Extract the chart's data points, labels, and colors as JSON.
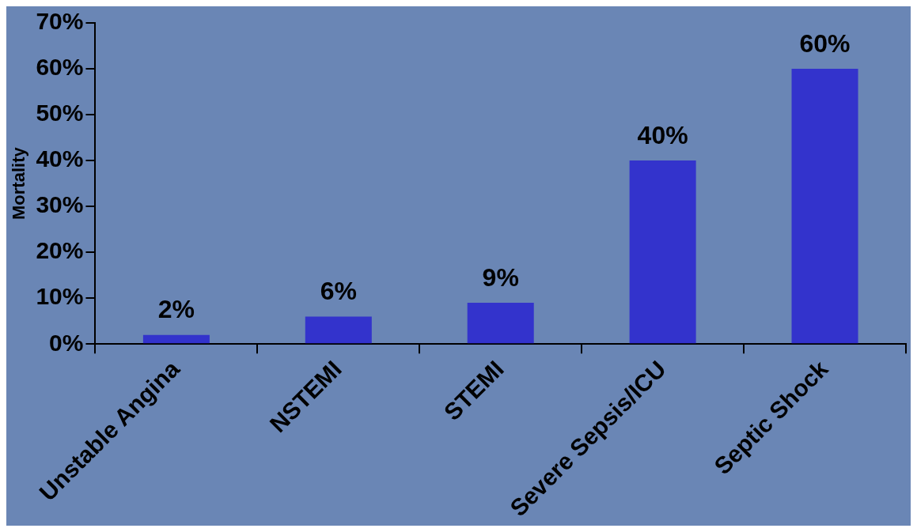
{
  "chart_data": {
    "type": "bar",
    "ylabel": "Mortality",
    "categories": [
      "Unstable Angina",
      "NSTEMI",
      "STEMI",
      "Severe Sepsis/ICU",
      "Septic Shock"
    ],
    "values": [
      2,
      6,
      9,
      40,
      60
    ],
    "value_labels": [
      "2%",
      "6%",
      "9%",
      "40%",
      "60%"
    ],
    "color": "#3333cc",
    "ylim": [
      0,
      70
    ],
    "yticks": [
      {
        "value": 0,
        "label": "0%"
      },
      {
        "value": 10,
        "label": "10%"
      },
      {
        "value": 20,
        "label": "20%"
      },
      {
        "value": 30,
        "label": "30%"
      },
      {
        "value": 40,
        "label": "40%"
      },
      {
        "value": 50,
        "label": "50%"
      },
      {
        "value": 60,
        "label": "60%"
      },
      {
        "value": 70,
        "label": "70%"
      }
    ],
    "grid": false,
    "legend": false
  }
}
